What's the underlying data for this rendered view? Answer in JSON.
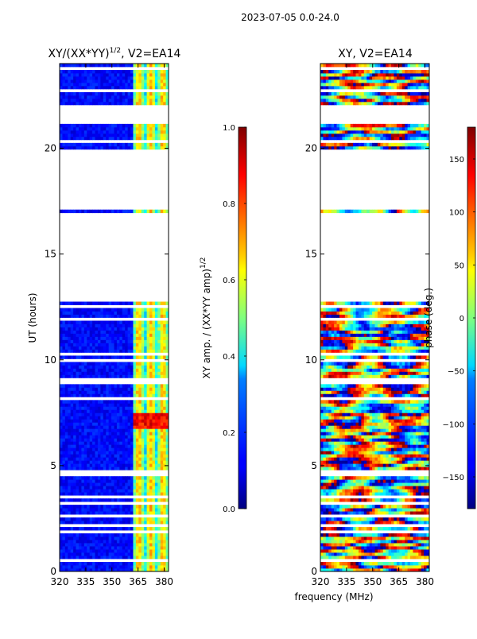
{
  "chart_data": {
    "type": "heatmap",
    "suptitle": "2023-07-05 0.0-24.0",
    "panels": [
      {
        "name": "amp",
        "title": "XY/(XX*YY)",
        "title_sup": "1/2",
        "title_suffix": ", V2=EA14",
        "xlabel": "",
        "ylabel": "UT (hours)",
        "xlim": [
          320,
          382.5
        ],
        "ylim": [
          0,
          24
        ],
        "xticks": [
          320,
          335,
          350,
          365,
          380
        ],
        "yticks": [
          0,
          5,
          10,
          15,
          20
        ],
        "colorbar": {
          "label": "XY amp. / (XX*YY amp)",
          "label_sup": "1/2",
          "range": [
            0.0,
            1.0
          ],
          "ticks": [
            "0.0",
            "0.2",
            "0.4",
            "0.6",
            "0.8",
            "1.0"
          ],
          "colormap": "jet"
        }
      },
      {
        "name": "phase",
        "title": "XY, V2=EA14",
        "xlabel": "frequency (MHz)",
        "ylabel": "",
        "xlim": [
          320,
          382.5
        ],
        "ylim": [
          0,
          24
        ],
        "xticks": [
          320,
          335,
          350,
          365,
          380
        ],
        "yticks": [
          0,
          5,
          10,
          15,
          20
        ],
        "colorbar": {
          "label": "phase (deg.)",
          "range": [
            -180,
            180
          ],
          "ticks": [
            "−150",
            "−100",
            "−50",
            "0",
            "50",
            "100",
            "150"
          ],
          "tick_values": [
            -150,
            -100,
            -50,
            0,
            50,
            100,
            150
          ],
          "colormap": "jet"
        }
      }
    ],
    "data_segments_ut_hours": [
      [
        0,
        12.75
      ],
      [
        16.95,
        17.05
      ],
      [
        19.9,
        21.2
      ],
      [
        21.8,
        24
      ]
    ],
    "amp_bright_band_mhz": [
      362,
      382
    ],
    "amp_hot_spot_ut_hours": [
      6.8,
      7.5
    ]
  }
}
